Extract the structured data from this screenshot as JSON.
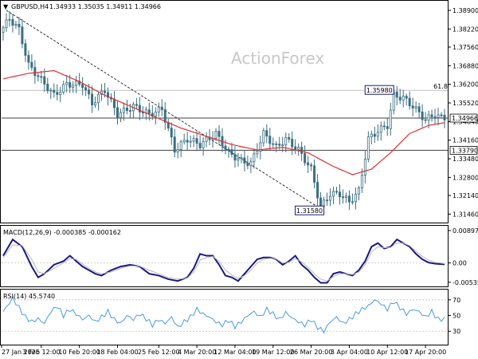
{
  "header": {
    "symbol_label": "GBPUSD,H4",
    "ohlc": "1.34933 1.35035 1.34911 1.34966"
  },
  "watermark": "ActionForex",
  "colors": {
    "candle": "#3a6f80",
    "ma": "#e03030",
    "macd_main": "#1a1a80",
    "macd_signal": "#b8b8b8",
    "rsi": "#4a9ce0",
    "grid_level": "#c0c0c0",
    "hline": "#000000"
  },
  "chart_data": [
    {
      "type": "candlestick",
      "name": "price",
      "ylim": [
        1.3115,
        1.3925
      ],
      "yticks": [
        "1.38900",
        "1.38220",
        "1.37560",
        "1.36880",
        "1.36200",
        "1.35520",
        "1.34840",
        "1.34160",
        "1.33480",
        "1.32800",
        "1.32140",
        "1.31460"
      ],
      "ytick_values": [
        1.389,
        1.3822,
        1.3756,
        1.3688,
        1.362,
        1.3552,
        1.3484,
        1.3416,
        1.3348,
        1.328,
        1.3214,
        1.3146
      ],
      "xticks": [
        "27 Jan 2026",
        "3 Feb 12:00",
        "10 Feb 20:00",
        "18 Feb 04:00",
        "25 Feb 12:00",
        "4 Mar 20:00",
        "12 Mar 04:00",
        "19 Mar 12:00",
        "26 Mar 20:00",
        "3 Apr 04:00",
        "10 Apr 12:00",
        "17 Apr 20:00"
      ],
      "bars": 140,
      "anchors": [
        [
          0,
          1.381
        ],
        [
          3,
          1.386
        ],
        [
          6,
          1.382
        ],
        [
          9,
          1.369
        ],
        [
          12,
          1.365
        ],
        [
          17,
          1.358
        ],
        [
          21,
          1.362
        ],
        [
          26,
          1.362
        ],
        [
          29,
          1.355
        ],
        [
          33,
          1.36
        ],
        [
          37,
          1.351
        ],
        [
          42,
          1.354
        ],
        [
          47,
          1.351
        ],
        [
          51,
          1.353
        ],
        [
          55,
          1.338
        ],
        [
          59,
          1.342
        ],
        [
          63,
          1.34
        ],
        [
          68,
          1.344
        ],
        [
          72,
          1.337
        ],
        [
          76,
          1.334
        ],
        [
          79,
          1.333
        ],
        [
          83,
          1.344
        ],
        [
          87,
          1.339
        ],
        [
          90,
          1.342
        ],
        [
          94,
          1.338
        ],
        [
          98,
          1.331
        ],
        [
          101,
          1.317
        ],
        [
          104,
          1.322
        ],
        [
          107,
          1.322
        ],
        [
          110,
          1.319
        ],
        [
          113,
          1.323
        ],
        [
          116,
          1.342
        ],
        [
          119,
          1.345
        ],
        [
          122,
          1.347
        ],
        [
          124,
          1.358
        ],
        [
          127,
          1.357
        ],
        [
          130,
          1.354
        ],
        [
          134,
          1.349
        ],
        [
          137,
          1.351
        ],
        [
          139,
          1.3497
        ]
      ],
      "moving_average": [
        [
          0,
          1.364
        ],
        [
          8,
          1.366
        ],
        [
          16,
          1.367
        ],
        [
          24,
          1.363
        ],
        [
          32,
          1.358
        ],
        [
          40,
          1.354
        ],
        [
          48,
          1.35
        ],
        [
          56,
          1.346
        ],
        [
          64,
          1.343
        ],
        [
          72,
          1.34
        ],
        [
          80,
          1.338
        ],
        [
          88,
          1.339
        ],
        [
          96,
          1.337
        ],
        [
          104,
          1.332
        ],
        [
          110,
          1.329
        ],
        [
          116,
          1.331
        ],
        [
          122,
          1.337
        ],
        [
          128,
          1.344
        ],
        [
          134,
          1.347
        ],
        [
          139,
          1.348
        ]
      ],
      "levels": [
        {
          "label": "1.35980",
          "value": 1.3598,
          "kind": "fib",
          "fib_label": "61.8"
        },
        {
          "label": "1.34966",
          "value": 1.34966,
          "kind": "current"
        },
        {
          "label": "1.33790",
          "value": 1.3379,
          "kind": "support"
        }
      ],
      "annotations": [
        {
          "text": "1.35980",
          "bar": 123,
          "value": 1.3598
        },
        {
          "text": "1.31580",
          "bar": 101,
          "value": 1.3158
        }
      ],
      "trendline": [
        [
          1,
          1.389
        ],
        [
          101,
          1.3158
        ]
      ]
    },
    {
      "type": "line",
      "name": "MACD(12,26,9) -0.000385 -0.000162",
      "ylim": [
        -0.0065,
        0.0103
      ],
      "yticks": [
        "0.008972",
        "0.00",
        "-0.005356"
      ],
      "ytick_values": [
        0.008972,
        0.0,
        -0.005356
      ],
      "zero_line": true,
      "series": [
        {
          "role": "main",
          "points": [
            [
              0,
              0.002
            ],
            [
              3,
              0.0065
            ],
            [
              6,
              0.0045
            ],
            [
              9,
              -0.001
            ],
            [
              11,
              -0.004
            ],
            [
              13,
              -0.003
            ],
            [
              16,
              -0.0005
            ],
            [
              19,
              0.0005
            ],
            [
              21,
              0.002
            ],
            [
              23,
              0.0005
            ],
            [
              25,
              -0.001
            ],
            [
              27,
              -0.002
            ],
            [
              29,
              -0.003
            ],
            [
              31,
              -0.0035
            ],
            [
              34,
              -0.002
            ],
            [
              37,
              -0.001
            ],
            [
              40,
              -0.0005
            ],
            [
              43,
              -0.001
            ],
            [
              46,
              -0.003
            ],
            [
              49,
              -0.0035
            ],
            [
              52,
              -0.0045
            ],
            [
              55,
              -0.005
            ],
            [
              58,
              -0.004
            ],
            [
              60,
              -0.0015
            ],
            [
              62,
              0.0025
            ],
            [
              64,
              0.002
            ],
            [
              66,
              0.002
            ],
            [
              68,
              -0.0005
            ],
            [
              70,
              -0.0035
            ],
            [
              72,
              -0.004
            ],
            [
              74,
              -0.005
            ],
            [
              76,
              -0.003
            ],
            [
              78,
              -0.001
            ],
            [
              80,
              0.001
            ],
            [
              82,
              0.0015
            ],
            [
              84,
              0.0015
            ],
            [
              86,
              0.001
            ],
            [
              88,
              -0.0005
            ],
            [
              90,
              0.0005
            ],
            [
              92,
              0.002
            ],
            [
              94,
              -0.0005
            ],
            [
              96,
              -0.002
            ],
            [
              98,
              -0.004
            ],
            [
              100,
              -0.0055
            ],
            [
              102,
              -0.0055
            ],
            [
              104,
              -0.003
            ],
            [
              106,
              -0.0025
            ],
            [
              108,
              -0.003
            ],
            [
              110,
              -0.0035
            ],
            [
              112,
              -0.002
            ],
            [
              114,
              0.0005
            ],
            [
              116,
              0.0045
            ],
            [
              118,
              0.0055
            ],
            [
              120,
              0.004
            ],
            [
              122,
              0.0045
            ],
            [
              124,
              0.0065
            ],
            [
              126,
              0.0055
            ],
            [
              128,
              0.0045
            ],
            [
              130,
              0.0025
            ],
            [
              132,
              0.001
            ],
            [
              134,
              0.0001
            ],
            [
              136,
              -0.0002
            ],
            [
              139,
              -0.0004
            ]
          ]
        },
        {
          "role": "signal",
          "points": [
            [
              0,
              0.0015
            ],
            [
              3,
              0.005
            ],
            [
              6,
              0.0048
            ],
            [
              9,
              0.001
            ],
            [
              11,
              -0.0025
            ],
            [
              13,
              -0.003
            ],
            [
              16,
              -0.0015
            ],
            [
              19,
              0.0
            ],
            [
              21,
              0.0012
            ],
            [
              23,
              0.001
            ],
            [
              25,
              -0.0003
            ],
            [
              27,
              -0.0015
            ],
            [
              29,
              -0.0025
            ],
            [
              31,
              -0.003
            ],
            [
              34,
              -0.0025
            ],
            [
              37,
              -0.0015
            ],
            [
              40,
              -0.0008
            ],
            [
              43,
              -0.0009
            ],
            [
              46,
              -0.002
            ],
            [
              49,
              -0.003
            ],
            [
              52,
              -0.004
            ],
            [
              55,
              -0.0045
            ],
            [
              58,
              -0.0042
            ],
            [
              60,
              -0.0025
            ],
            [
              62,
              0.0008
            ],
            [
              64,
              0.0015
            ],
            [
              66,
              0.0018
            ],
            [
              68,
              0.0005
            ],
            [
              70,
              -0.002
            ],
            [
              72,
              -0.0033
            ],
            [
              74,
              -0.0043
            ],
            [
              76,
              -0.0035
            ],
            [
              78,
              -0.002
            ],
            [
              80,
              0.0
            ],
            [
              82,
              0.001
            ],
            [
              84,
              0.0013
            ],
            [
              86,
              0.0011
            ],
            [
              88,
              0.0
            ],
            [
              90,
              0.0002
            ],
            [
              92,
              0.0012
            ],
            [
              94,
              0.0003
            ],
            [
              96,
              -0.0012
            ],
            [
              98,
              -0.003
            ],
            [
              100,
              -0.0045
            ],
            [
              102,
              -0.005
            ],
            [
              104,
              -0.0038
            ],
            [
              106,
              -0.003
            ],
            [
              108,
              -0.003
            ],
            [
              110,
              -0.0032
            ],
            [
              112,
              -0.0025
            ],
            [
              114,
              -0.0005
            ],
            [
              116,
              0.003
            ],
            [
              118,
              0.0045
            ],
            [
              120,
              0.0042
            ],
            [
              122,
              0.0043
            ],
            [
              124,
              0.0055
            ],
            [
              126,
              0.0055
            ],
            [
              128,
              0.0048
            ],
            [
              130,
              0.0032
            ],
            [
              132,
              0.0018
            ],
            [
              134,
              0.0008
            ],
            [
              136,
              0.0002
            ],
            [
              139,
              -0.0002
            ]
          ]
        }
      ]
    },
    {
      "type": "line",
      "name": "RSI(14) 45.5740",
      "ylim": [
        13,
        83
      ],
      "yticks": [
        "70",
        "50",
        "30"
      ],
      "ytick_values": [
        70,
        50,
        30
      ],
      "levels": [
        70,
        30
      ],
      "series": [
        {
          "role": "rsi",
          "points": [
            [
              0,
              55
            ],
            [
              3,
              72
            ],
            [
              5,
              60
            ],
            [
              7,
              48
            ],
            [
              9,
              42
            ],
            [
              11,
              46
            ],
            [
              13,
              40
            ],
            [
              15,
              55
            ],
            [
              17,
              62
            ],
            [
              19,
              50
            ],
            [
              21,
              58
            ],
            [
              23,
              52
            ],
            [
              25,
              45
            ],
            [
              27,
              50
            ],
            [
              29,
              42
            ],
            [
              31,
              48
            ],
            [
              33,
              55
            ],
            [
              35,
              45
            ],
            [
              37,
              40
            ],
            [
              39,
              50
            ],
            [
              41,
              45
            ],
            [
              43,
              52
            ],
            [
              45,
              46
            ],
            [
              47,
              38
            ],
            [
              49,
              45
            ],
            [
              51,
              40
            ],
            [
              53,
              48
            ],
            [
              55,
              35
            ],
            [
              57,
              42
            ],
            [
              59,
              48
            ],
            [
              61,
              58
            ],
            [
              63,
              52
            ],
            [
              65,
              48
            ],
            [
              67,
              42
            ],
            [
              69,
              38
            ],
            [
              71,
              44
            ],
            [
              73,
              36
            ],
            [
              75,
              42
            ],
            [
              77,
              50
            ],
            [
              79,
              55
            ],
            [
              81,
              48
            ],
            [
              83,
              58
            ],
            [
              85,
              52
            ],
            [
              87,
              45
            ],
            [
              89,
              54
            ],
            [
              91,
              47
            ],
            [
              93,
              42
            ],
            [
              95,
              38
            ],
            [
              97,
              45
            ],
            [
              99,
              35
            ],
            [
              101,
              30
            ],
            [
              103,
              42
            ],
            [
              105,
              48
            ],
            [
              107,
              40
            ],
            [
              109,
              45
            ],
            [
              111,
              52
            ],
            [
              113,
              58
            ],
            [
              115,
              62
            ],
            [
              117,
              70
            ],
            [
              119,
              65
            ],
            [
              121,
              58
            ],
            [
              123,
              68
            ],
            [
              125,
              60
            ],
            [
              127,
              52
            ],
            [
              129,
              58
            ],
            [
              131,
              55
            ],
            [
              133,
              48
            ],
            [
              135,
              55
            ],
            [
              137,
              45
            ],
            [
              139,
              45.6
            ]
          ]
        }
      ]
    }
  ]
}
